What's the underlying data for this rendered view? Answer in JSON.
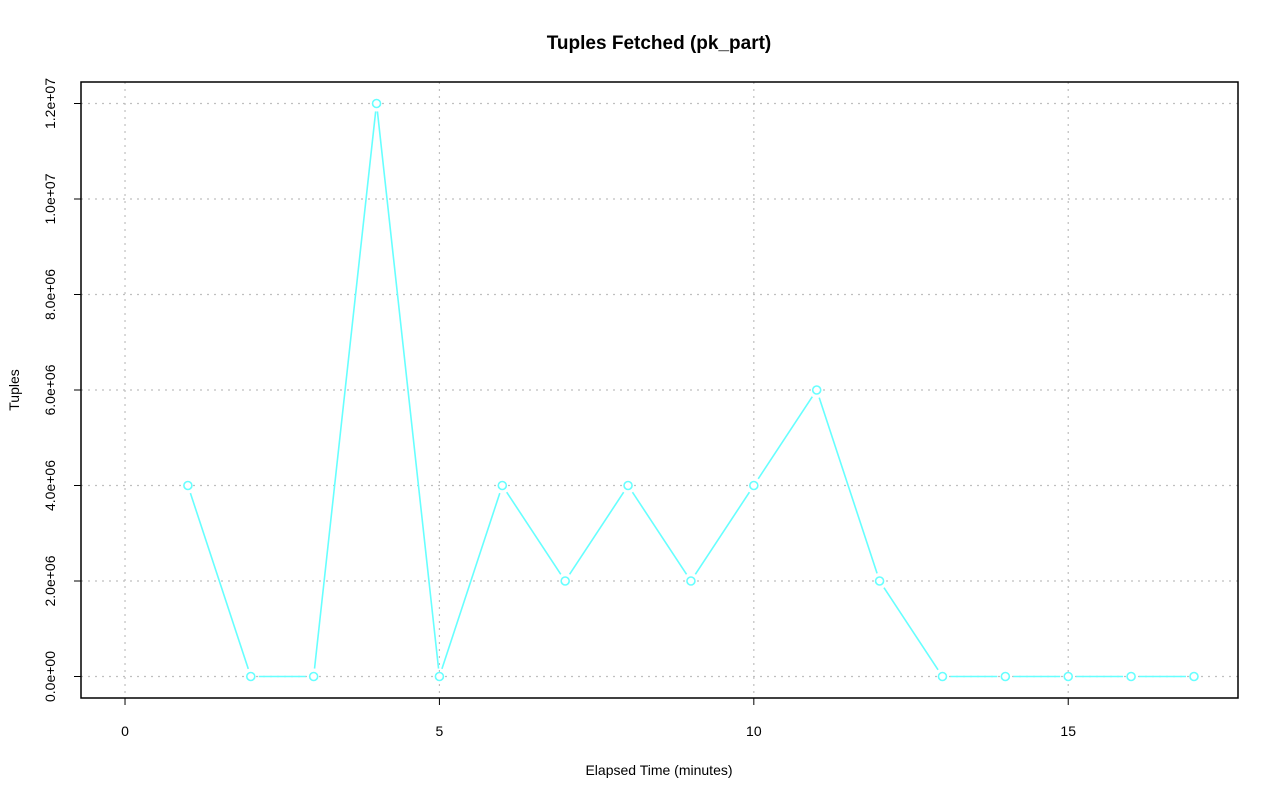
{
  "chart_data": {
    "type": "line",
    "title": "Tuples Fetched (pk_part)",
    "xlabel": "Elapsed Time (minutes)",
    "ylabel": "Tuples",
    "xlim": [
      -0.7,
      17.7
    ],
    "ylim": [
      -450000,
      12450000
    ],
    "x_ticks": [
      0,
      5,
      10,
      15
    ],
    "x_tick_labels": [
      "0",
      "5",
      "10",
      "15"
    ],
    "y_ticks": [
      0,
      2000000,
      4000000,
      6000000,
      8000000,
      10000000,
      12000000
    ],
    "y_tick_labels": [
      "0.0e+00",
      "2.0e+06",
      "4.0e+06",
      "6.0e+06",
      "8.0e+06",
      "1.0e+07",
      "1.2e+07"
    ],
    "grid": true,
    "series": [
      {
        "color": "#66ffff",
        "x": [
          1,
          2,
          3,
          4,
          5,
          6,
          7,
          8,
          9,
          10,
          11,
          12,
          13,
          14,
          15,
          16,
          17
        ],
        "values": [
          4000000,
          0,
          0,
          12000000,
          0,
          4000000,
          2000000,
          4000000,
          2000000,
          4000000,
          6000000,
          2000000,
          0,
          0,
          0,
          0,
          0
        ]
      }
    ]
  }
}
